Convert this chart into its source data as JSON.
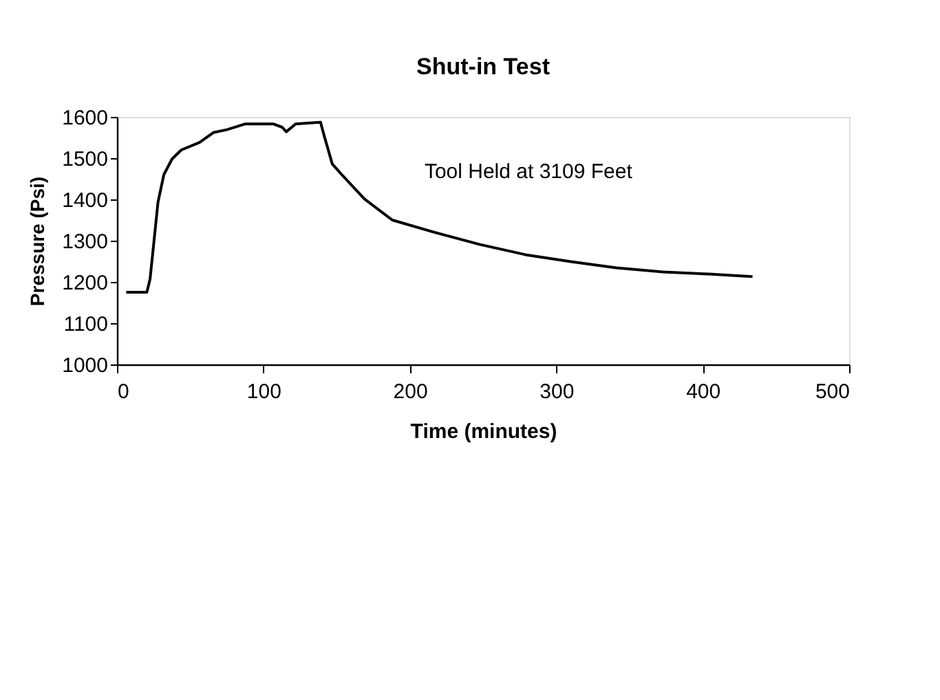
{
  "chart_data": {
    "type": "line",
    "title": "Shut-in Test",
    "xlabel": "Time (minutes)",
    "ylabel": "Pressure (Psi)",
    "x": [
      6.3,
      20.4,
      22.6,
      28,
      32,
      37.6,
      44,
      56.4,
      65.8,
      75,
      87.7,
      106.6,
      112.8,
      115.6,
      122,
      139,
      141.6,
      147,
      153.5,
      169,
      188,
      216,
      247.5,
      279,
      310,
      341,
      373,
      404,
      434
    ],
    "series": [
      {
        "color": "#000000",
        "values": [
          1175,
          1175,
          1207,
          1393,
          1460,
          1498,
          1520,
          1538,
          1562,
          1569,
          1583,
          1583,
          1575,
          1564,
          1583,
          1587,
          1553,
          1486,
          1460,
          1401,
          1350,
          1321,
          1291,
          1266,
          1249,
          1234,
          1224,
          1219,
          1213
        ]
      }
    ],
    "xlim": [
      0,
      500
    ],
    "xticks": [
      0,
      100,
      200,
      300,
      400,
      500
    ],
    "ylim": [
      1000,
      1600
    ],
    "yticks": [
      1000,
      1100,
      1200,
      1300,
      1400,
      1500,
      1600
    ],
    "grid": false,
    "legend": false,
    "marker": "none",
    "line_style": "solid",
    "annotations": [
      "Tool Held at 3109 Feet"
    ]
  }
}
